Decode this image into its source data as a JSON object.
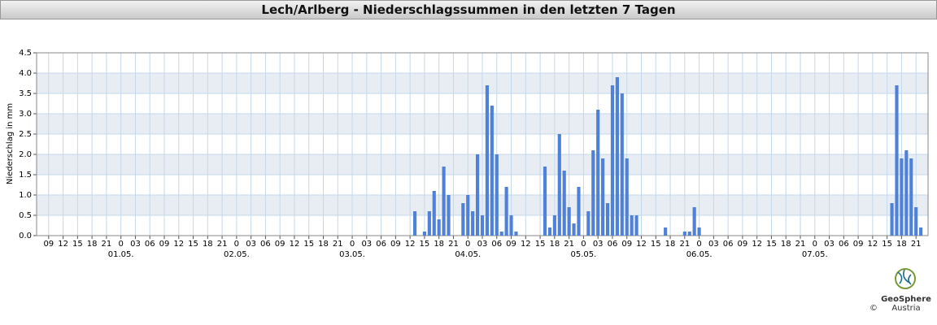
{
  "chart_data": {
    "type": "bar",
    "title": "Lech/Arlberg - Niederschlagssummen in den letzten 7 Tagen",
    "ylabel": "Niederschlag in mm",
    "color": "#4f81d9",
    "grid": true,
    "ylim": [
      0,
      4.5
    ],
    "yticks": [
      {
        "value": 0,
        "label": "0.0"
      },
      {
        "value": 0.5,
        "label": "0.5"
      },
      {
        "value": 1,
        "label": "1.0"
      },
      {
        "value": 1.5,
        "label": "1.5"
      },
      {
        "value": 2,
        "label": "2.0"
      },
      {
        "value": 2.5,
        "label": "2.5"
      },
      {
        "value": 3,
        "label": "3.0"
      },
      {
        "value": 3.5,
        "label": "3.5"
      },
      {
        "value": 4,
        "label": "4.0"
      },
      {
        "value": 4.5,
        "label": "4.5"
      }
    ],
    "categories": [
      null,
      null,
      "09",
      null,
      null,
      "12",
      null,
      null,
      "15",
      null,
      null,
      "18",
      null,
      null,
      "21",
      null,
      null,
      "0",
      null,
      null,
      "03",
      null,
      null,
      "06",
      null,
      null,
      "09",
      null,
      null,
      "12",
      null,
      null,
      "15",
      null,
      null,
      "18",
      null,
      null,
      "21",
      null,
      null,
      "0",
      null,
      null,
      "03",
      null,
      null,
      "06",
      null,
      null,
      "09",
      null,
      null,
      "12",
      null,
      null,
      "15",
      null,
      null,
      "18",
      null,
      null,
      "21",
      null,
      null,
      "0",
      null,
      null,
      "03",
      null,
      null,
      "06",
      null,
      null,
      "09",
      null,
      null,
      "12",
      null,
      null,
      "15",
      null,
      null,
      "18",
      null,
      null,
      "21",
      null,
      null,
      "0",
      null,
      null,
      "03",
      null,
      null,
      "06",
      null,
      null,
      "09",
      null,
      null,
      "12",
      null,
      null,
      "15",
      null,
      null,
      "18",
      null,
      null,
      "21",
      null,
      null,
      "0",
      null,
      null,
      "03",
      null,
      null,
      "06",
      null,
      null,
      "09",
      null,
      null,
      "12",
      null,
      null,
      "15",
      null,
      null,
      "18",
      null,
      null,
      "21",
      null,
      null,
      "0",
      null,
      null,
      "03",
      null,
      null,
      "06",
      null,
      null,
      "09",
      null,
      null,
      "12",
      null,
      null,
      "15",
      null,
      null,
      "18",
      null,
      null,
      "21",
      null,
      null,
      "0",
      null,
      null,
      "03",
      null,
      null,
      "06",
      null,
      null,
      "09",
      null,
      null,
      "12",
      null,
      null,
      "15",
      null,
      null,
      "18",
      null,
      null,
      "21",
      null,
      null
    ],
    "date_labels": [
      null,
      null,
      null,
      null,
      null,
      null,
      null,
      null,
      null,
      null,
      null,
      null,
      null,
      null,
      null,
      null,
      null,
      "01.05.",
      null,
      null,
      null,
      null,
      null,
      null,
      null,
      null,
      null,
      null,
      null,
      null,
      null,
      null,
      null,
      null,
      null,
      null,
      null,
      null,
      null,
      null,
      null,
      "02.05.",
      null,
      null,
      null,
      null,
      null,
      null,
      null,
      null,
      null,
      null,
      null,
      null,
      null,
      null,
      null,
      null,
      null,
      null,
      null,
      null,
      null,
      null,
      null,
      "03.05.",
      null,
      null,
      null,
      null,
      null,
      null,
      null,
      null,
      null,
      null,
      null,
      null,
      null,
      null,
      null,
      null,
      null,
      null,
      null,
      null,
      null,
      null,
      null,
      "04.05.",
      null,
      null,
      null,
      null,
      null,
      null,
      null,
      null,
      null,
      null,
      null,
      null,
      null,
      null,
      null,
      null,
      null,
      null,
      null,
      null,
      null,
      null,
      null,
      "05.05.",
      null,
      null,
      null,
      null,
      null,
      null,
      null,
      null,
      null,
      null,
      null,
      null,
      null,
      null,
      null,
      null,
      null,
      null,
      null,
      null,
      null,
      null,
      null,
      "06.05.",
      null,
      null,
      null,
      null,
      null,
      null,
      null,
      null,
      null,
      null,
      null,
      null,
      null,
      null,
      null,
      null,
      null,
      null,
      null,
      null,
      null,
      null,
      null,
      "07.05.",
      null,
      null,
      null,
      null,
      null,
      null,
      null,
      null,
      null,
      null,
      null,
      null,
      null,
      null,
      null,
      null,
      null,
      null,
      null,
      null,
      null,
      null,
      null
    ],
    "values": [
      0,
      0,
      0,
      0,
      0,
      0,
      0,
      0,
      0,
      0,
      0,
      0,
      0,
      0,
      0,
      0,
      0,
      0,
      0,
      0,
      0,
      0,
      0,
      0,
      0,
      0,
      0,
      0,
      0,
      0,
      0,
      0,
      0,
      0,
      0,
      0,
      0,
      0,
      0,
      0,
      0,
      0,
      0,
      0,
      0,
      0,
      0,
      0,
      0,
      0,
      0,
      0,
      0,
      0,
      0,
      0,
      0,
      0,
      0,
      0,
      0,
      0,
      0,
      0,
      0,
      0,
      0,
      0,
      0,
      0,
      0,
      0,
      0,
      0,
      0,
      0,
      0,
      0,
      0.6,
      0,
      0.1,
      0.6,
      1.1,
      0.4,
      1.7,
      1.0,
      0,
      0,
      0.8,
      1.0,
      0.6,
      2.0,
      0.5,
      3.7,
      3.2,
      2.0,
      0.1,
      1.2,
      0.5,
      0.1,
      0,
      0,
      0,
      0,
      0,
      1.7,
      0.2,
      0.5,
      2.5,
      1.6,
      0.7,
      0.3,
      1.2,
      0,
      0.6,
      2.1,
      3.1,
      1.9,
      0.8,
      3.7,
      3.9,
      3.5,
      1.9,
      0.5,
      0.5,
      0,
      0,
      0,
      0,
      0,
      0.2,
      0,
      0,
      0,
      0.1,
      0.1,
      0.7,
      0.2,
      0,
      0,
      0,
      0,
      0,
      0,
      0,
      0,
      0,
      0,
      0,
      0,
      0,
      0,
      0,
      0,
      0,
      0,
      0,
      0,
      0,
      0,
      0,
      0,
      0,
      0,
      0,
      0,
      0,
      0,
      0,
      0,
      0,
      0,
      0,
      0,
      0,
      0,
      0,
      0.8,
      3.7,
      1.9,
      2.1,
      1.9,
      0.7,
      0.2,
      0
    ]
  },
  "logo": {
    "name": "GeoSphere",
    "sub": "Austria",
    "copyright": "©"
  }
}
